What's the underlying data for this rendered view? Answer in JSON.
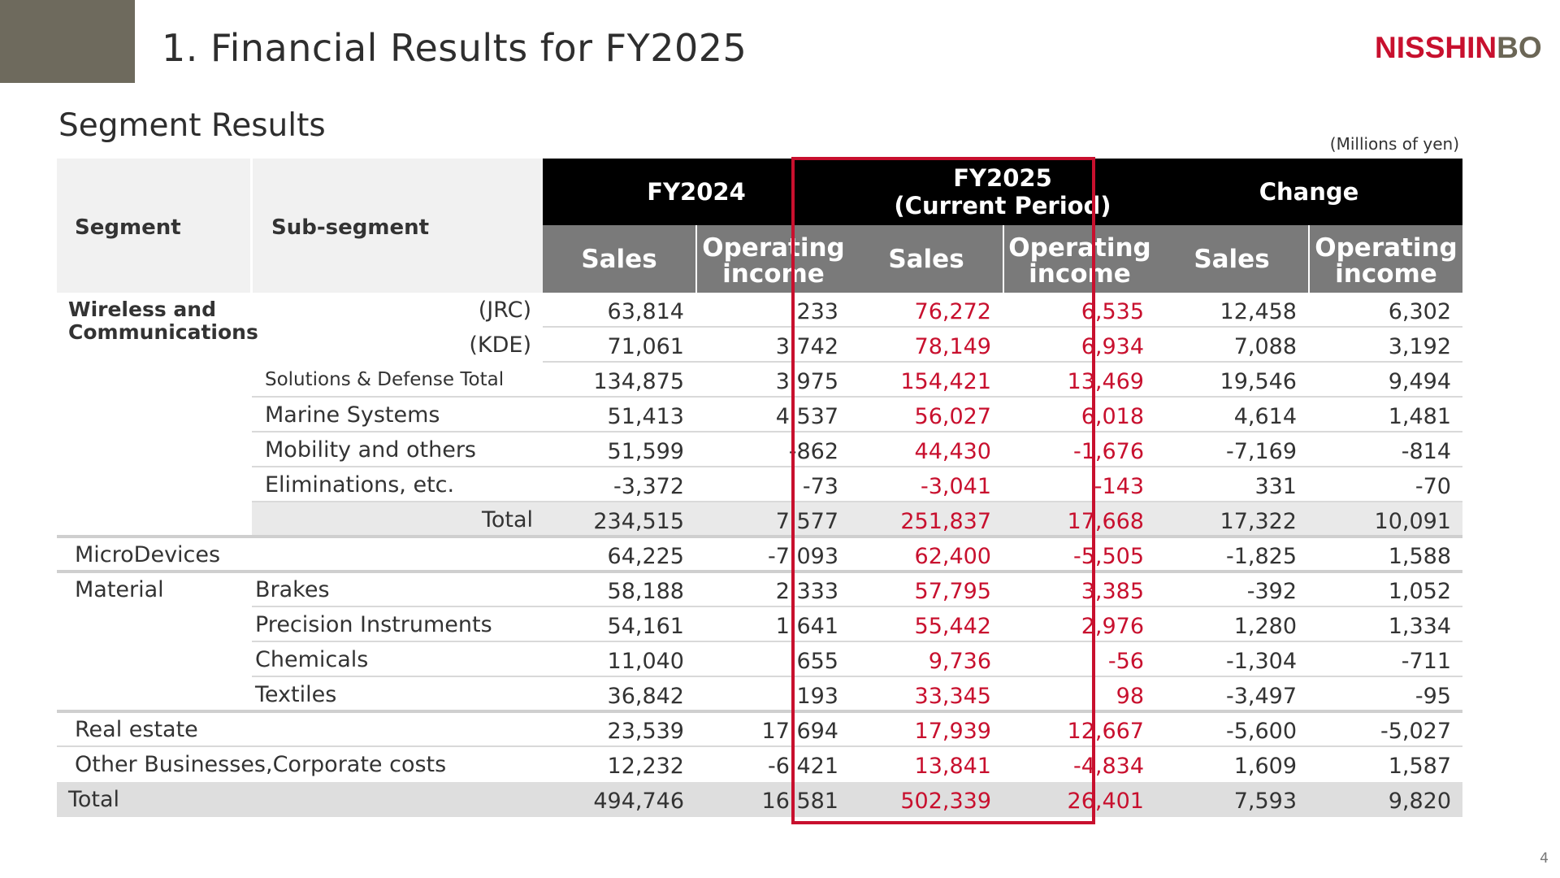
{
  "page": {
    "title": "1. Financial Results for FY2025",
    "section_title": "Segment Results",
    "unit_note": "(Millions of yen)",
    "page_number": "4",
    "logo": {
      "part1": "N",
      "part2": "I",
      "part3": "SSH",
      "part4": "I",
      "part5": "N",
      "part6": "BO"
    },
    "accent_color": "#6e6a5d",
    "highlight_color": "#c8102e"
  },
  "table": {
    "headers": {
      "segment": "Segment",
      "sub_segment": "Sub-segment",
      "groups": [
        {
          "label_line1": "FY2024",
          "label_line2": ""
        },
        {
          "label_line1": "FY2025",
          "label_line2": "(Current Period)"
        },
        {
          "label_line1": "Change",
          "label_line2": ""
        }
      ],
      "sales": "Sales",
      "op_line1": "Operating",
      "op_line2": "income"
    },
    "segment_labels": {
      "wireless_line1": "Wireless and",
      "wireless_line2": "Communications"
    },
    "rows": [
      {
        "segment": "",
        "sub": "(JRC)",
        "fy24_sales": "63,814",
        "fy24_op": "233",
        "fy25_sales": "76,272",
        "fy25_op": "6,535",
        "chg_sales": "12,458",
        "chg_op": "6,302"
      },
      {
        "segment": "",
        "sub": "(KDE)",
        "fy24_sales": "71,061",
        "fy24_op": "3,742",
        "fy25_sales": "78,149",
        "fy25_op": "6,934",
        "chg_sales": "7,088",
        "chg_op": "3,192"
      },
      {
        "segment": "",
        "sub": "Solutions & Defense Total",
        "fy24_sales": "134,875",
        "fy24_op": "3,975",
        "fy25_sales": "154,421",
        "fy25_op": "13,469",
        "chg_sales": "19,546",
        "chg_op": "9,494"
      },
      {
        "segment": "",
        "sub": "Marine Systems",
        "fy24_sales": "51,413",
        "fy24_op": "4,537",
        "fy25_sales": "56,027",
        "fy25_op": "6,018",
        "chg_sales": "4,614",
        "chg_op": "1,481"
      },
      {
        "segment": "",
        "sub": "Mobility and others",
        "fy24_sales": "51,599",
        "fy24_op": "-862",
        "fy25_sales": "44,430",
        "fy25_op": "-1,676",
        "chg_sales": "-7,169",
        "chg_op": "-814"
      },
      {
        "segment": "",
        "sub": "Eliminations, etc.",
        "fy24_sales": "-3,372",
        "fy24_op": "-73",
        "fy25_sales": "-3,041",
        "fy25_op": "-143",
        "chg_sales": "331",
        "chg_op": "-70"
      },
      {
        "segment": "",
        "sub": "Total",
        "fy24_sales": "234,515",
        "fy24_op": "7,577",
        "fy25_sales": "251,837",
        "fy25_op": "17,668",
        "chg_sales": "17,322",
        "chg_op": "10,091"
      },
      {
        "segment": "MicroDevices",
        "sub": "",
        "fy24_sales": "64,225",
        "fy24_op": "-7,093",
        "fy25_sales": "62,400",
        "fy25_op": "-5,505",
        "chg_sales": "-1,825",
        "chg_op": "1,588"
      },
      {
        "segment": "Material",
        "sub": "Brakes",
        "fy24_sales": "58,188",
        "fy24_op": "2,333",
        "fy25_sales": "57,795",
        "fy25_op": "3,385",
        "chg_sales": "-392",
        "chg_op": "1,052"
      },
      {
        "segment": "",
        "sub": "Precision Instruments",
        "fy24_sales": "54,161",
        "fy24_op": "1,641",
        "fy25_sales": "55,442",
        "fy25_op": "2,976",
        "chg_sales": "1,280",
        "chg_op": "1,334"
      },
      {
        "segment": "",
        "sub": "Chemicals",
        "fy24_sales": "11,040",
        "fy24_op": "655",
        "fy25_sales": "9,736",
        "fy25_op": "-56",
        "chg_sales": "-1,304",
        "chg_op": "-711"
      },
      {
        "segment": "",
        "sub": "Textiles",
        "fy24_sales": "36,842",
        "fy24_op": "193",
        "fy25_sales": "33,345",
        "fy25_op": "98",
        "chg_sales": "-3,497",
        "chg_op": "-95"
      },
      {
        "segment": "Real estate",
        "sub": "",
        "fy24_sales": "23,539",
        "fy24_op": "17,694",
        "fy25_sales": "17,939",
        "fy25_op": "12,667",
        "chg_sales": "-5,600",
        "chg_op": "-5,027"
      },
      {
        "segment": "Other Businesses,Corporate costs",
        "sub": "",
        "fy24_sales": "12,232",
        "fy24_op": "-6,421",
        "fy25_sales": "13,841",
        "fy25_op": "-4,834",
        "chg_sales": "1,609",
        "chg_op": "1,587"
      },
      {
        "segment": "Total",
        "sub": "",
        "fy24_sales": "494,746",
        "fy24_op": "16,581",
        "fy25_sales": "502,339",
        "fy25_op": "26,401",
        "chg_sales": "7,593",
        "chg_op": "9,820"
      }
    ]
  }
}
